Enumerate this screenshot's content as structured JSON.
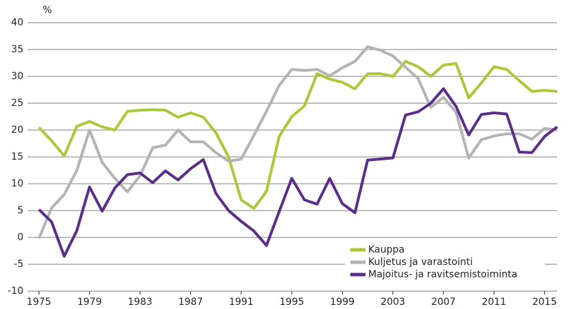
{
  "chart_data": {
    "type": "line",
    "ylabel": "%",
    "x": [
      1975,
      1976,
      1977,
      1978,
      1979,
      1980,
      1981,
      1982,
      1983,
      1984,
      1985,
      1986,
      1987,
      1988,
      1989,
      1990,
      1991,
      1992,
      1993,
      1994,
      1995,
      1996,
      1997,
      1998,
      1999,
      2000,
      2001,
      2002,
      2003,
      2004,
      2005,
      2006,
      2007,
      2008,
      2009,
      2010,
      2011,
      2012,
      2013,
      2014,
      2015,
      2016
    ],
    "series": [
      {
        "name": "Kauppa",
        "color": "#a9c93a",
        "values": [
          20.5,
          18,
          15.2,
          20.7,
          21.6,
          20.6,
          20.0,
          23.5,
          23.7,
          23.8,
          23.7,
          22.4,
          23.2,
          22.4,
          19.5,
          15.0,
          7.0,
          5.4,
          8.6,
          18.8,
          22.5,
          24.5,
          30.5,
          29.5,
          28.9,
          27.7,
          30.5,
          30.5,
          30.0,
          32.8,
          31.8,
          30.0,
          32.1,
          32.4,
          26.0,
          28.8,
          31.8,
          31.3,
          29.2,
          27.2,
          27.4,
          27.2
        ]
      },
      {
        "name": "Kuljetus ja varastointi",
        "color": "#b3b3b3",
        "values": [
          -0.2,
          5.5,
          8.0,
          12.5,
          20.0,
          14.0,
          11.0,
          8.5,
          11.5,
          16.7,
          17.2,
          20.0,
          17.8,
          17.8,
          15.8,
          14.2,
          14.6,
          19.0,
          23.5,
          28.3,
          31.3,
          31.1,
          31.3,
          30.1,
          31.6,
          32.8,
          35.5,
          34.9,
          33.8,
          31.7,
          29.6,
          24.2,
          26.1,
          23.3,
          14.8,
          18.2,
          18.9,
          19.3,
          19.3,
          18.3,
          20.3,
          20.0
        ]
      },
      {
        "name": "Majoitus- ja ravitsemistoiminta",
        "color": "#5b2d86",
        "values": [
          5.2,
          2.9,
          -3.5,
          1.3,
          9.4,
          4.9,
          9.2,
          11.7,
          12.0,
          10.2,
          12.4,
          10.7,
          12.8,
          14.5,
          8.2,
          5.0,
          3.0,
          1.2,
          -1.5,
          4.8,
          11.0,
          7.0,
          6.2,
          11.0,
          6.3,
          4.6,
          14.4,
          14.6,
          14.8,
          22.8,
          23.4,
          25.0,
          27.7,
          24.4,
          19.1,
          22.9,
          23.2,
          23.0,
          15.9,
          15.8,
          18.8,
          20.6
        ]
      }
    ],
    "xlim": [
      1974.1,
      2016
    ],
    "xticks": [
      1975,
      1979,
      1983,
      1987,
      1991,
      1995,
      1999,
      2003,
      2007,
      2011,
      2015
    ],
    "ylim": [
      -10,
      40
    ],
    "yticks": [
      -10,
      -5,
      0,
      5,
      10,
      15,
      20,
      25,
      30,
      35,
      40
    ],
    "grid": true,
    "legend": "lower right"
  }
}
